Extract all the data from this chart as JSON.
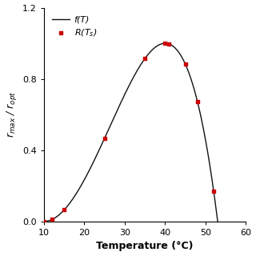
{
  "title": "",
  "xlabel": "Temperature (°C)",
  "ylabel": "$r_{max}$ / $r_{opt}$",
  "xlim": [
    10,
    60
  ],
  "ylim": [
    0,
    1.2
  ],
  "xticks": [
    10,
    20,
    30,
    40,
    50,
    60
  ],
  "yticks": [
    0.0,
    0.4,
    0.8,
    1.2
  ],
  "T_min": 10.0,
  "T_opt": 40.0,
  "T_max": 53.0,
  "scatter_x": [
    10,
    12,
    15,
    25,
    35,
    40,
    41,
    45,
    48,
    52
  ],
  "line_color": "#111111",
  "scatter_color": "#cc0000",
  "legend_line_label": "f(T)",
  "legend_scatter_label": "R(T$_s$)",
  "legend_fontsize": 8,
  "axis_label_fontsize": 9,
  "tick_fontsize": 8,
  "figsize": [
    3.2,
    3.2
  ],
  "dpi": 100
}
